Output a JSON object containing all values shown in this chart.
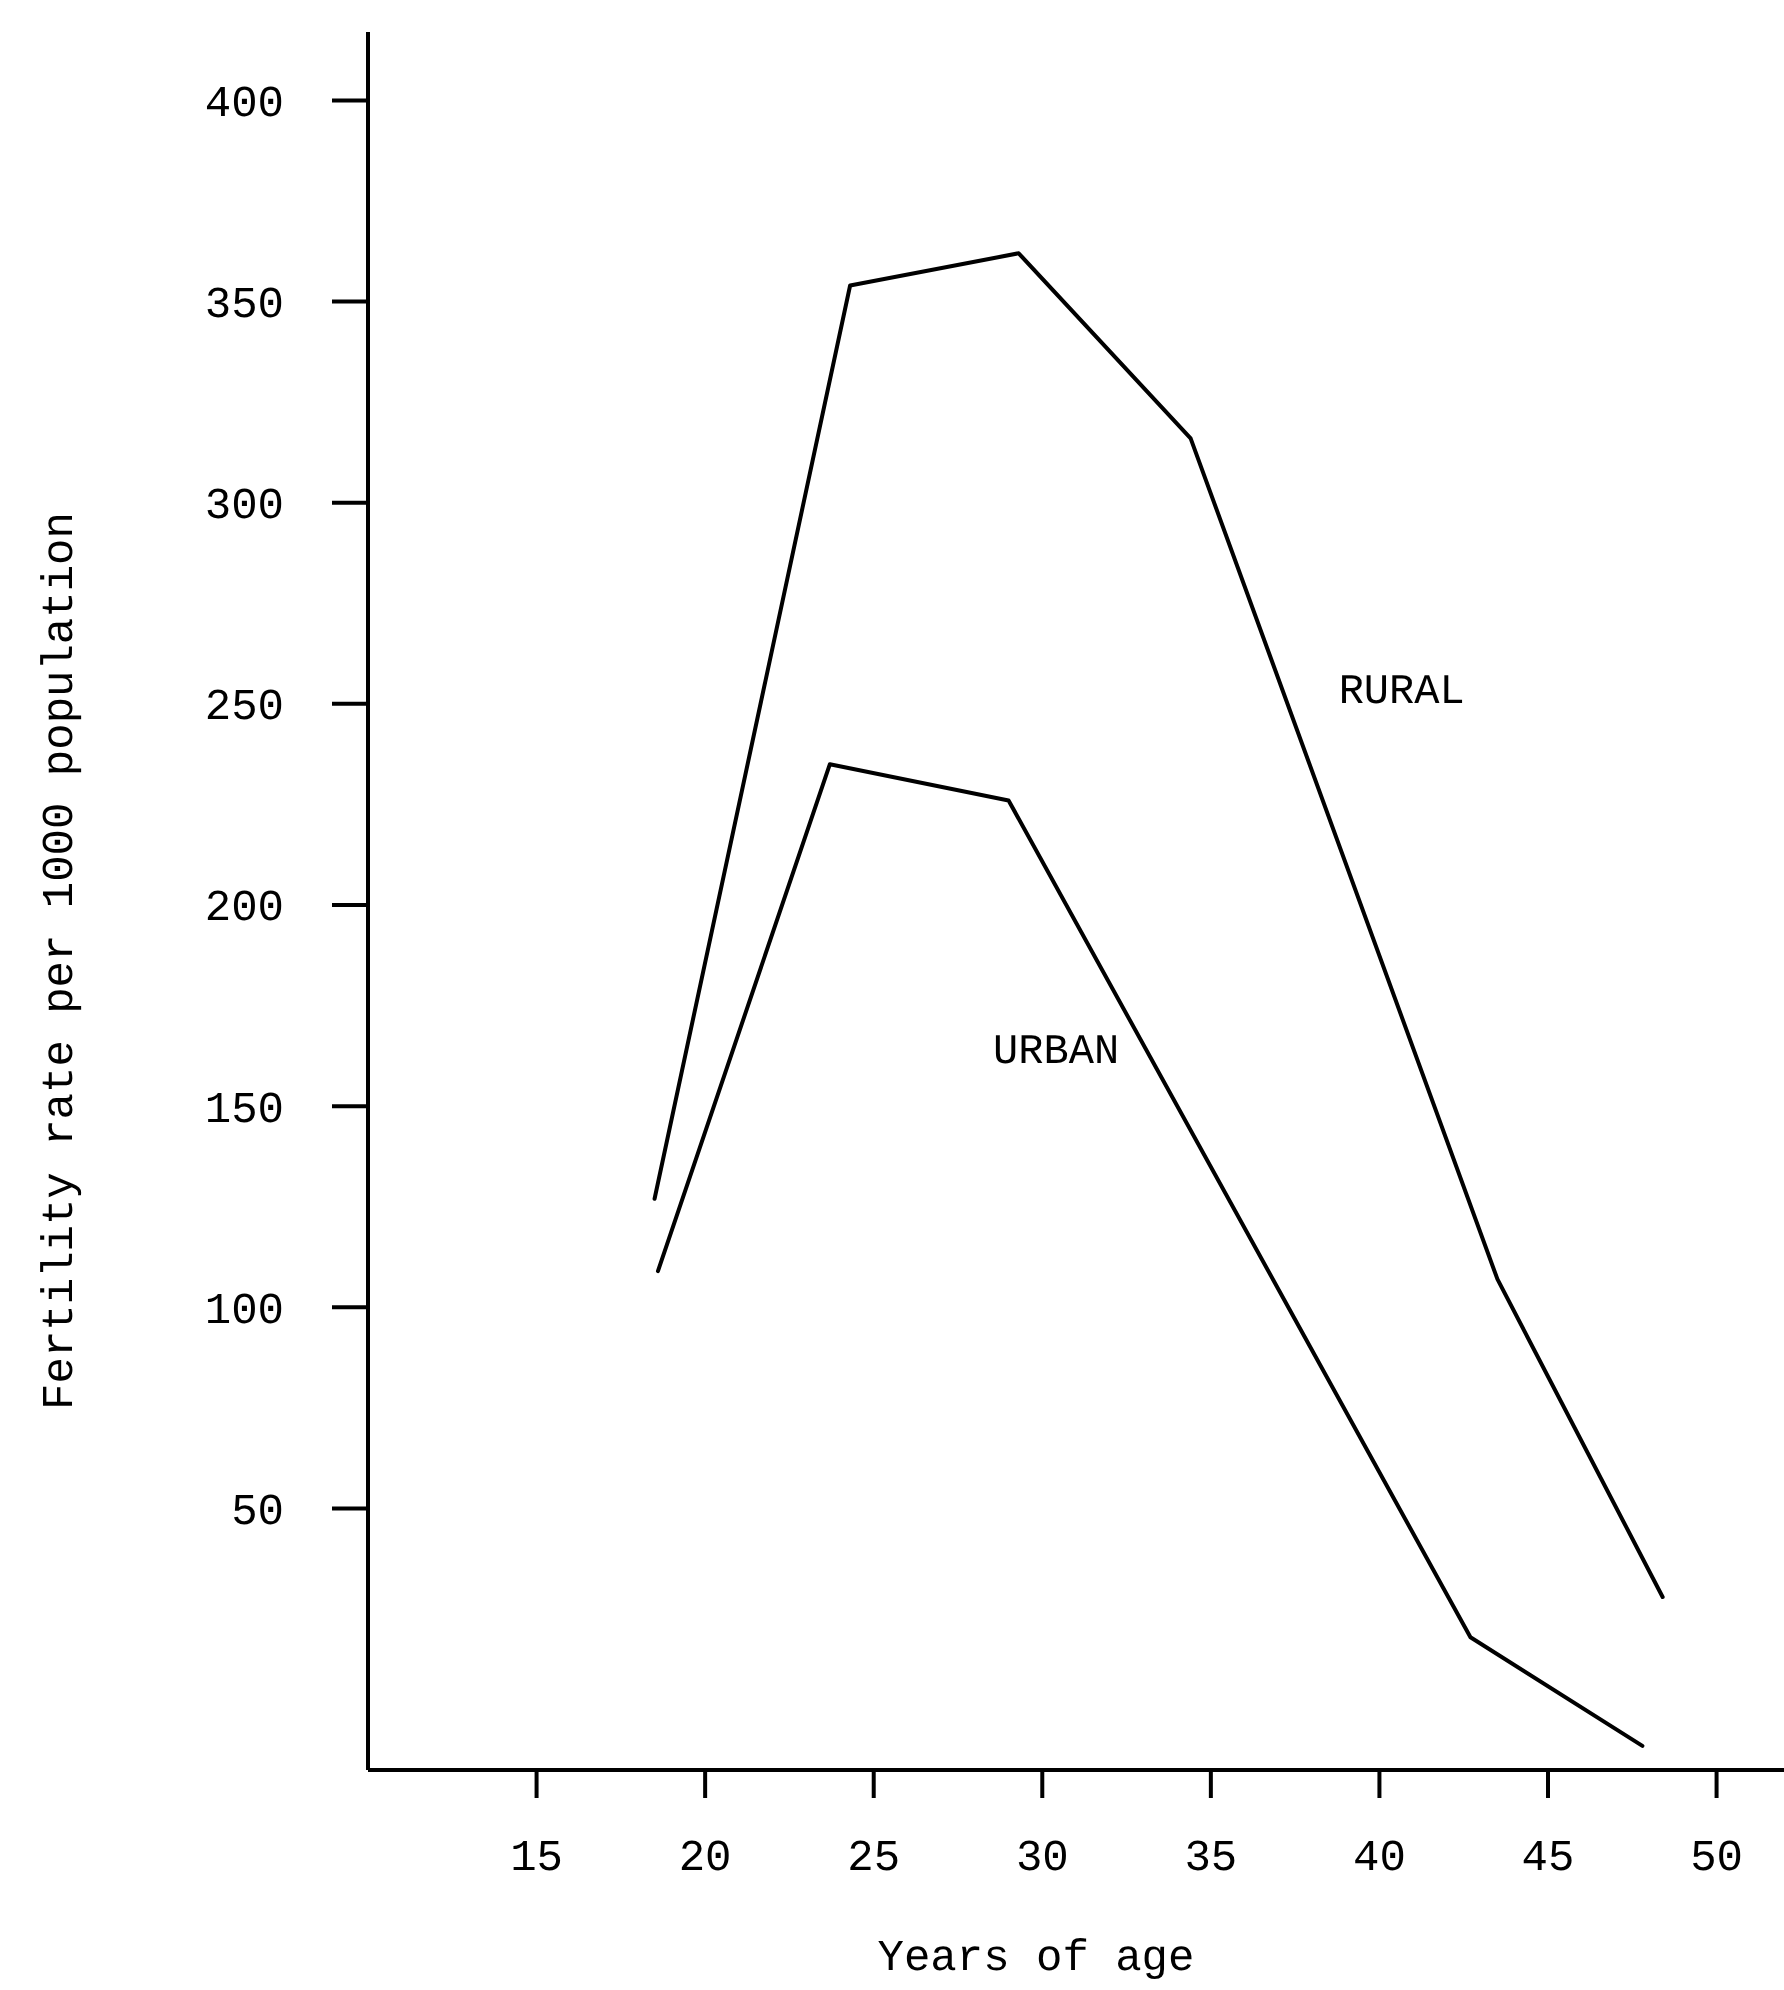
{
  "chart_data": {
    "type": "line",
    "xlabel": "Years of age",
    "ylabel": "Fertility rate per 1000 population",
    "xlim": [
      10,
      52
    ],
    "xticks": [
      15,
      20,
      25,
      30,
      35,
      40,
      45,
      50
    ],
    "ylim": [
      -15,
      417
    ],
    "yticks": [
      50,
      100,
      150,
      200,
      250,
      300,
      350,
      400
    ],
    "grid": false,
    "marker": "none",
    "line_style": "solid",
    "series": [
      {
        "name": "RURAL",
        "color": "#000000",
        "x": [
          18.5,
          24.3,
          29.3,
          34.4,
          43.5,
          48.4
        ],
        "values": [
          127,
          354,
          362,
          316,
          107,
          28
        ]
      },
      {
        "name": "URBAN",
        "color": "#000000",
        "x": [
          18.6,
          23.7,
          29.0,
          42.7,
          47.8
        ],
        "values": [
          109,
          235,
          226,
          18,
          -9
        ]
      }
    ]
  }
}
